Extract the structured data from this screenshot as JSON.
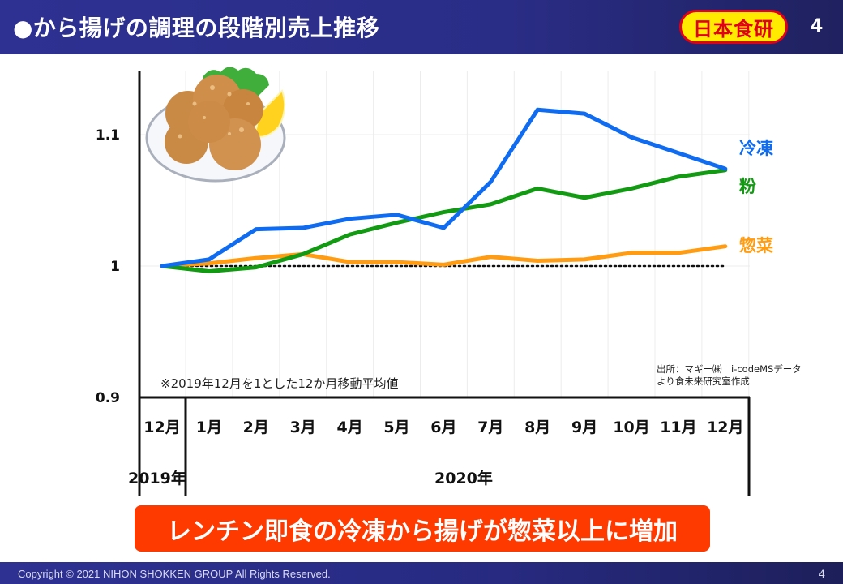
{
  "header": {
    "title": "●から揚げの調理の段階別売上推移",
    "logo_text": "日本食研",
    "page_number": "4"
  },
  "footer": {
    "copyright": "Copyright © 2021 NIHON SHOKKEN GROUP All Rights Reserved.",
    "page_number": "4"
  },
  "banner": {
    "text": "レンチン即食の冷凍から揚げが惣菜以上に増加"
  },
  "illustration": {
    "name": "karaage-plate-illustration"
  },
  "chart_data": {
    "type": "line",
    "title": "から揚げの調理の段階別売上推移",
    "categories": [
      "12月",
      "1月",
      "2月",
      "3月",
      "4月",
      "5月",
      "6月",
      "7月",
      "8月",
      "9月",
      "10月",
      "11月",
      "12月"
    ],
    "year_labels": [
      {
        "label": "2019年",
        "span": "12月"
      },
      {
        "label": "2020年",
        "span": "1月–12月"
      }
    ],
    "yticks": [
      {
        "value": 1.1,
        "label": "1.1"
      },
      {
        "value": 1.0,
        "label": "1"
      },
      {
        "value": 0.9,
        "label": "0.9"
      }
    ],
    "ylim": [
      0.9,
      1.15
    ],
    "xlabel": "",
    "ylabel": "",
    "grid": true,
    "baseline": {
      "value": 1.0,
      "style": "dotted"
    },
    "series": [
      {
        "name": "冷凍",
        "color": "#0f6cf0",
        "values": [
          1.0,
          1.005,
          1.028,
          1.029,
          1.036,
          1.039,
          1.029,
          1.064,
          1.119,
          1.116,
          1.098,
          1.086,
          1.074
        ]
      },
      {
        "name": "粉",
        "color": "#129a12",
        "values": [
          1.0,
          0.996,
          0.999,
          1.009,
          1.024,
          1.033,
          1.041,
          1.047,
          1.059,
          1.052,
          1.059,
          1.068,
          1.073
        ]
      },
      {
        "name": "惣菜",
        "color": "#ff9c12",
        "values": [
          1.0,
          1.002,
          1.006,
          1.009,
          1.003,
          1.003,
          1.001,
          1.007,
          1.004,
          1.005,
          1.01,
          1.01,
          1.015
        ]
      }
    ],
    "legend_placement": "right",
    "annotations": {
      "note": "※2019年12月を1とした12か月移動平均値",
      "source_line1": "出所：マギー㈱　i-codeMSデータ",
      "source_line2": "より食未来研究室作成"
    }
  }
}
